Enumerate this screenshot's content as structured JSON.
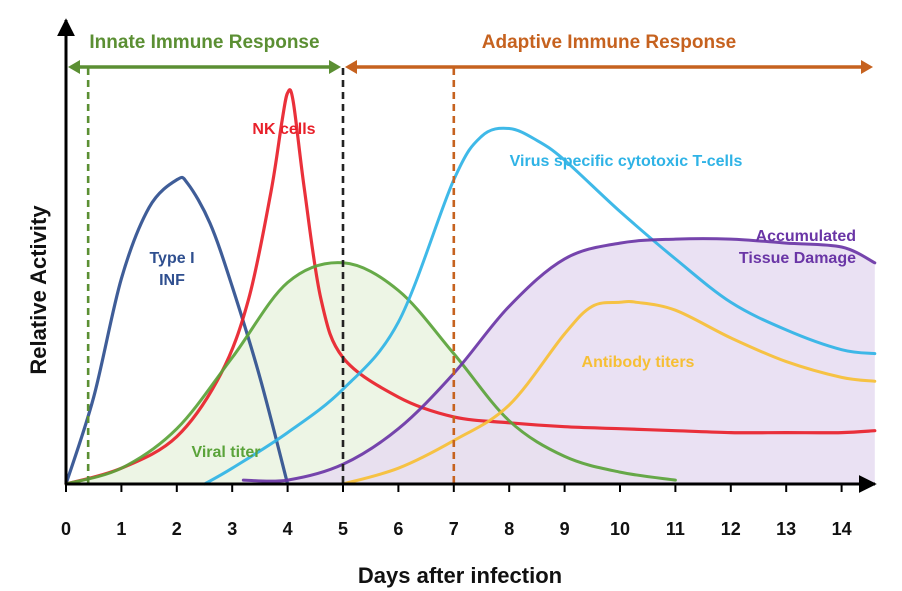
{
  "chart_data": {
    "type": "line",
    "title": "",
    "xlabel": "Days after infection",
    "ylabel": "Relative Activity",
    "xlim": [
      0,
      14.6
    ],
    "ylim": [
      0,
      1
    ],
    "x_ticks": [
      "0",
      "1",
      "2",
      "3",
      "4",
      "5",
      "6",
      "7",
      "8",
      "9",
      "10",
      "11",
      "12",
      "13",
      "14"
    ],
    "phases": [
      {
        "name": "Innate Immune Response",
        "from": 0,
        "to": 5,
        "color": "#5b8f33"
      },
      {
        "name": "Adaptive Immune Response",
        "from": 5,
        "to": 14.6,
        "color": "#c6621f"
      }
    ],
    "markers": [
      {
        "x": 0.4,
        "color": "#5b8f33",
        "style": "dashed"
      },
      {
        "x": 5,
        "color": "#222222",
        "style": "dashed"
      },
      {
        "x": 7,
        "color": "#c6621f",
        "style": "dashed"
      }
    ],
    "series": [
      {
        "name": "Type I INF",
        "label": "Type I\nINF",
        "color": "#2f4f8f",
        "fill": null,
        "x": [
          0,
          0.5,
          1,
          1.5,
          2,
          2.2,
          2.6,
          3,
          3.5,
          4
        ],
        "y": [
          0,
          0.22,
          0.52,
          0.7,
          0.77,
          0.76,
          0.66,
          0.5,
          0.27,
          0
        ]
      },
      {
        "name": "NK cells",
        "label": "NK cells",
        "color": "#e8202a",
        "fill": null,
        "x": [
          0,
          1,
          2,
          2.8,
          3.3,
          3.7,
          3.9,
          4.0,
          4.1,
          4.3,
          4.6,
          5,
          6,
          7,
          8,
          9,
          10,
          11,
          12,
          13,
          14,
          14.6
        ],
        "y": [
          0,
          0.04,
          0.12,
          0.28,
          0.47,
          0.74,
          0.92,
          0.99,
          0.97,
          0.75,
          0.47,
          0.32,
          0.22,
          0.17,
          0.155,
          0.145,
          0.14,
          0.135,
          0.13,
          0.13,
          0.13,
          0.135
        ]
      },
      {
        "name": "Viral titer",
        "label": "Viral titer",
        "color": "#5aa33a",
        "fill": "#eaf3e1",
        "x": [
          0,
          1,
          2,
          3,
          4,
          5,
          6,
          7,
          8,
          9,
          10,
          11
        ],
        "y": [
          0,
          0.04,
          0.14,
          0.32,
          0.51,
          0.56,
          0.49,
          0.33,
          0.16,
          0.07,
          0.03,
          0.01
        ]
      },
      {
        "name": "Virus specific cytotoxic T-cells",
        "label": "Virus specific cytotoxic T-cells",
        "color": "#2fb3e6",
        "fill": null,
        "x": [
          2.5,
          3,
          4,
          5,
          6,
          7,
          7.5,
          8,
          8.5,
          9,
          10,
          11,
          12,
          13,
          14,
          14.6
        ],
        "y": [
          0,
          0.04,
          0.13,
          0.24,
          0.41,
          0.77,
          0.88,
          0.9,
          0.87,
          0.82,
          0.69,
          0.57,
          0.46,
          0.39,
          0.34,
          0.33
        ]
      },
      {
        "name": "Accumulated Tissue Damage",
        "label": "Accumulated\nTissue Damage",
        "color": "#6a35a6",
        "fill": "#e6dcf1",
        "x": [
          3.2,
          4,
          5,
          6,
          7,
          8,
          9,
          10,
          11,
          12,
          13,
          14,
          14.6
        ],
        "y": [
          0.01,
          0.01,
          0.05,
          0.14,
          0.28,
          0.45,
          0.57,
          0.61,
          0.62,
          0.62,
          0.61,
          0.6,
          0.56
        ]
      },
      {
        "name": "Antibody titers",
        "label": "Antibody titers",
        "color": "#f6bf35",
        "fill": null,
        "x": [
          5,
          6,
          7,
          8,
          9,
          9.5,
          10,
          10.3,
          11,
          12,
          13,
          14,
          14.6
        ],
        "y": [
          0,
          0.04,
          0.11,
          0.2,
          0.38,
          0.45,
          0.46,
          0.46,
          0.44,
          0.37,
          0.31,
          0.27,
          0.26
        ]
      }
    ]
  }
}
